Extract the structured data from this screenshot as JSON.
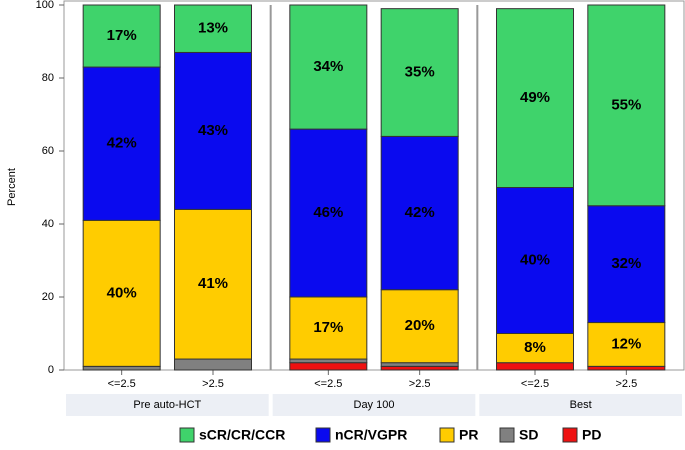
{
  "chart_data": {
    "type": "bar",
    "stacked": true,
    "ylabel": "Percent",
    "ylim": [
      0,
      100
    ],
    "yticks": [
      0,
      20,
      40,
      60,
      80,
      100
    ],
    "groups": [
      "Pre auto-HCT",
      "Day 100",
      "Best"
    ],
    "categories": [
      "<=2.5",
      ">2.5",
      "<=2.5",
      ">2.5",
      "<=2.5",
      ">2.5"
    ],
    "series": [
      {
        "name": "sCR/CR/CCR",
        "color": "#3fd36b",
        "values": [
          17,
          13,
          34,
          35,
          49,
          55
        ],
        "value_labels": [
          "17%",
          "13%",
          "34%",
          "35%",
          "49%",
          "55%"
        ]
      },
      {
        "name": "nCR/VGPR",
        "color": "#0a0aef",
        "values": [
          42,
          43,
          46,
          42,
          40,
          32
        ],
        "value_labels": [
          "42%",
          "43%",
          "46%",
          "42%",
          "40%",
          "32%"
        ]
      },
      {
        "name": "PR",
        "color": "#ffcc00",
        "values": [
          40,
          41,
          17,
          20,
          8,
          12
        ],
        "value_labels": [
          "40%",
          "41%",
          "17%",
          "20%",
          "8%",
          "12%"
        ]
      },
      {
        "name": "SD",
        "color": "#808080",
        "values": [
          1,
          3,
          1,
          1,
          0,
          0
        ]
      },
      {
        "name": "PD",
        "color": "#ee1111",
        "values": [
          0,
          0,
          2,
          1,
          2,
          1
        ]
      }
    ]
  }
}
